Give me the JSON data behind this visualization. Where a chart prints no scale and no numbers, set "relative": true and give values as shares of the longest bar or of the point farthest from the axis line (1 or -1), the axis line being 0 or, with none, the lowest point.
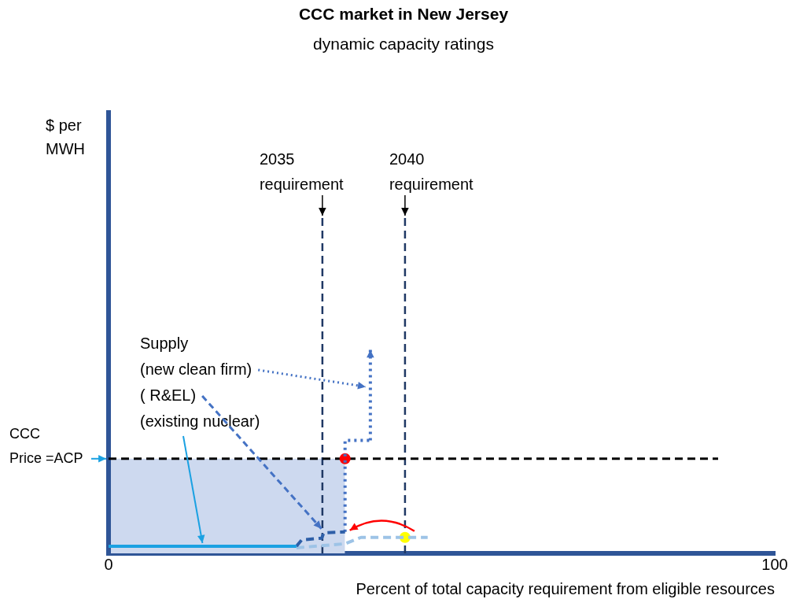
{
  "chart_data": {
    "type": "line",
    "title": "CCC market in New Jersey",
    "subtitle": "dynamic capacity ratings",
    "xlabel": "Percent of total capacity requirement from eligible resources",
    "relative": true,
    "xlim": [
      0,
      100
    ],
    "xticks": [
      0,
      100
    ],
    "tick_labels": "x",
    "grid": false,
    "legend": false,
    "marker": "none",
    "series": [
      {
        "type": "area",
        "color": "#cdd9ef",
        "x": [
          0,
          35.5
        ],
        "values": [
          0.837,
          0.837
        ]
      },
      {
        "color": "#1ba1e2",
        "line_style": "solid",
        "x": [
          0,
          28.2
        ],
        "values": [
          0.063,
          0.063
        ]
      },
      {
        "color": "#2e5fa8",
        "line_style": "dashed",
        "x": [
          28.2,
          29,
          32,
          32.3,
          35.5
        ],
        "values": [
          0.063,
          0.119,
          0.134,
          0.181,
          0.19
        ]
      },
      {
        "color": "#4472c4",
        "line_style": "dotted",
        "x": [
          35.5,
          35.5,
          39.3
        ],
        "values": [
          0.19,
          1,
          1
        ]
      },
      {
        "color": "#9dc3e6",
        "line_style": "dashed",
        "x": [
          28.2,
          35.5,
          37.9,
          47.9
        ],
        "values": [
          0.049,
          0.085,
          0.141,
          0.141
        ]
      },
      {
        "type": "scatter",
        "marker": "circle",
        "colors": [
          "#ff0000",
          "#ffff00"
        ],
        "x": [
          35.5,
          44.5
        ],
        "values": [
          0.837,
          0.141
        ]
      }
    ],
    "ref_lines": [
      {
        "axis": "x",
        "value": 0,
        "color": "#2f5597",
        "line_style": "solid"
      },
      {
        "axis": "x",
        "value": 32.1,
        "label": "2035\nrequirement",
        "color": "#1f3864",
        "line_style": "dashed"
      },
      {
        "axis": "x",
        "value": 44.5,
        "label": "2040\nrequirement",
        "color": "#1f3864",
        "line_style": "dashed"
      },
      {
        "axis": "y",
        "value": 0.837,
        "label": "CCC\nPrice =ACP",
        "color": "#000000",
        "line_style": "dashed"
      }
    ],
    "annotations": [
      "$ per MWH",
      "Supply",
      "(new clean firm)",
      "( R&EL)",
      "(existing nuclear)"
    ]
  }
}
